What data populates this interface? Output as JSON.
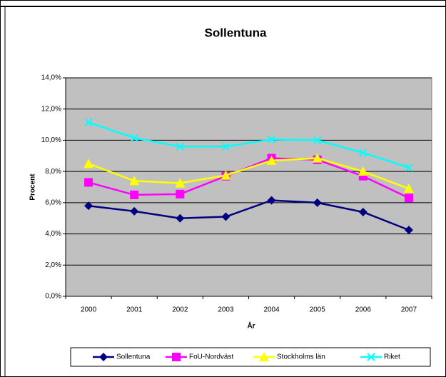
{
  "chart_data": {
    "type": "line",
    "title": "Sollentuna",
    "x_label": "År",
    "y_label": "Procent",
    "categories": [
      "2000",
      "2001",
      "2002",
      "2003",
      "2004",
      "2005",
      "2006",
      "2007"
    ],
    "series": [
      {
        "name": "Sollentuna",
        "color": "#000080",
        "marker": "diamond",
        "values": [
          5.8,
          5.45,
          5.0,
          5.1,
          6.15,
          6.0,
          5.4,
          4.25
        ]
      },
      {
        "name": "FoU-Nordväst",
        "color": "#ff00ff",
        "marker": "square",
        "values": [
          7.3,
          6.5,
          6.55,
          7.7,
          8.85,
          8.75,
          7.7,
          6.3
        ]
      },
      {
        "name": "Stockholms län",
        "color": "#ffff00",
        "marker": "triangle",
        "values": [
          8.5,
          7.4,
          7.25,
          7.75,
          8.7,
          8.85,
          8.0,
          6.9
        ]
      },
      {
        "name": "Riket",
        "color": "#00ffff",
        "marker": "x",
        "values": [
          11.15,
          10.15,
          9.6,
          9.6,
          10.05,
          10.0,
          9.2,
          8.25
        ]
      }
    ],
    "ylim": [
      0,
      14
    ],
    "yticks": [
      {
        "value": 0,
        "label": "0,0%"
      },
      {
        "value": 2,
        "label": "2,0%"
      },
      {
        "value": 4,
        "label": "4,0%"
      },
      {
        "value": 6,
        "label": "6,0%"
      },
      {
        "value": 8,
        "label": "8,0%"
      },
      {
        "value": 10,
        "label": "10,0%"
      },
      {
        "value": 12,
        "label": "12,0%"
      },
      {
        "value": 14,
        "label": "14,0%"
      }
    ],
    "grid": true,
    "legend": "bottom"
  }
}
